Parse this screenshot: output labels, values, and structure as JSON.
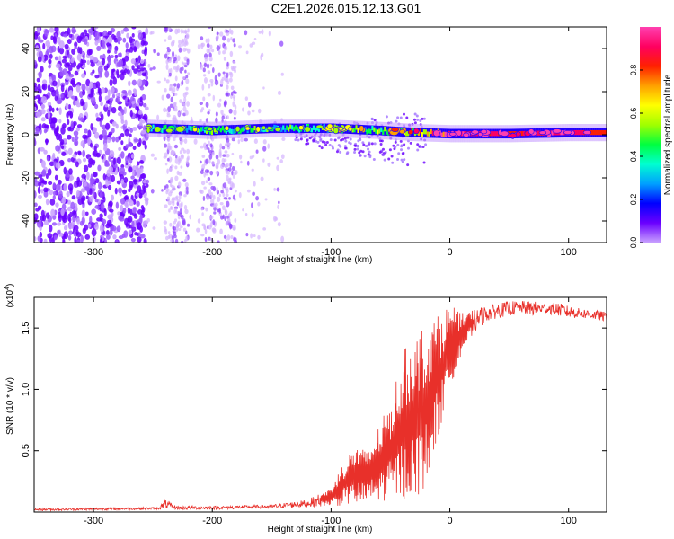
{
  "figure": {
    "title": "C2E1.2026.015.12.13.G01"
  },
  "colors": {
    "snr_line": "#e8302a",
    "axis": "#000000",
    "background": "#ffffff"
  },
  "chart_data": [
    {
      "type": "heatmap",
      "title": "C2E1.2026.015.12.13.G01",
      "xlabel": "Height of straight line (km)",
      "ylabel": "Frequency (Hz)",
      "xlim": [
        -350,
        132
      ],
      "ylim": [
        -50,
        50
      ],
      "x_ticks": [
        -300,
        -200,
        -100,
        0,
        100
      ],
      "y_ticks": [
        -40,
        -20,
        0,
        20,
        40
      ],
      "colorbar": {
        "label": "Normalized spectral amplitude",
        "range": [
          0.0,
          1.0
        ],
        "ticks": [
          "0.0",
          "0.2",
          "0.4",
          "0.6",
          "0.8"
        ],
        "colormap": [
          "#c8a0ff",
          "#6a00ff",
          "#0000ff",
          "#00a0ff",
          "#00ffd0",
          "#00ff40",
          "#a0ff00",
          "#ffff00",
          "#ffa000",
          "#ff2000",
          "#ff0060",
          "#ff40b0"
        ]
      },
      "structure": {
        "noise_region_x": [
          -350,
          -255
        ],
        "sparse_noise_x": [
          -255,
          -140
        ],
        "tone_band": {
          "x": [
            -255,
            132
          ],
          "center_hz": [
            [
              -255,
              3
            ],
            [
              -200,
              2
            ],
            [
              -150,
              3
            ],
            [
              -100,
              3
            ],
            [
              -60,
              2
            ],
            [
              -30,
              1
            ],
            [
              0,
              0.5
            ],
            [
              50,
              0.5
            ],
            [
              100,
              1
            ],
            [
              132,
              1
            ]
          ],
          "peak_amplitude": [
            [
              -255,
              0.45
            ],
            [
              -150,
              0.5
            ],
            [
              -100,
              0.55
            ],
            [
              -60,
              0.55
            ],
            [
              -20,
              0.8
            ],
            [
              0,
              0.95
            ],
            [
              50,
              0.85
            ],
            [
              100,
              0.95
            ],
            [
              132,
              0.8
            ]
          ]
        },
        "fan_out_x": [
          -130,
          -20
        ]
      }
    },
    {
      "type": "line",
      "xlabel": "Height of straight line (km)",
      "ylabel": "SNR (10 * v/v)",
      "y_multiplier": "(x10",
      "y_multiplier_exp": "4",
      "y_multiplier_close": ")",
      "xlim": [
        -350,
        132
      ],
      "ylim": [
        0.0,
        1.75
      ],
      "x_ticks": [
        -300,
        -200,
        -100,
        0,
        100
      ],
      "y_ticks": [
        "0.5",
        "1.0",
        "1.5"
      ],
      "series": [
        {
          "envelope_x": [
            -350,
            -245,
            -240,
            -230,
            -200,
            -150,
            -120,
            -100,
            -90,
            -80,
            -70,
            -60,
            -50,
            -40,
            -30,
            -20,
            -10,
            0,
            10,
            20,
            30,
            40,
            50,
            60,
            70,
            80,
            90,
            100,
            110,
            120,
            132
          ],
          "envelope_min": [
            0.01,
            0.02,
            0.03,
            0.02,
            0.02,
            0.03,
            0.04,
            0.05,
            0.05,
            0.05,
            0.06,
            0.08,
            0.1,
            0.1,
            0.1,
            0.2,
            0.6,
            1.0,
            1.3,
            1.45,
            1.55,
            1.58,
            1.6,
            1.62,
            1.6,
            1.62,
            1.6,
            1.58,
            1.58,
            1.57,
            1.55
          ],
          "envelope_max": [
            0.03,
            0.04,
            0.1,
            0.05,
            0.05,
            0.06,
            0.1,
            0.2,
            0.4,
            0.55,
            0.5,
            0.7,
            0.9,
            1.3,
            1.45,
            1.55,
            1.6,
            1.7,
            1.62,
            1.65,
            1.68,
            1.7,
            1.72,
            1.72,
            1.72,
            1.7,
            1.71,
            1.68,
            1.66,
            1.65,
            1.63
          ]
        }
      ]
    }
  ]
}
